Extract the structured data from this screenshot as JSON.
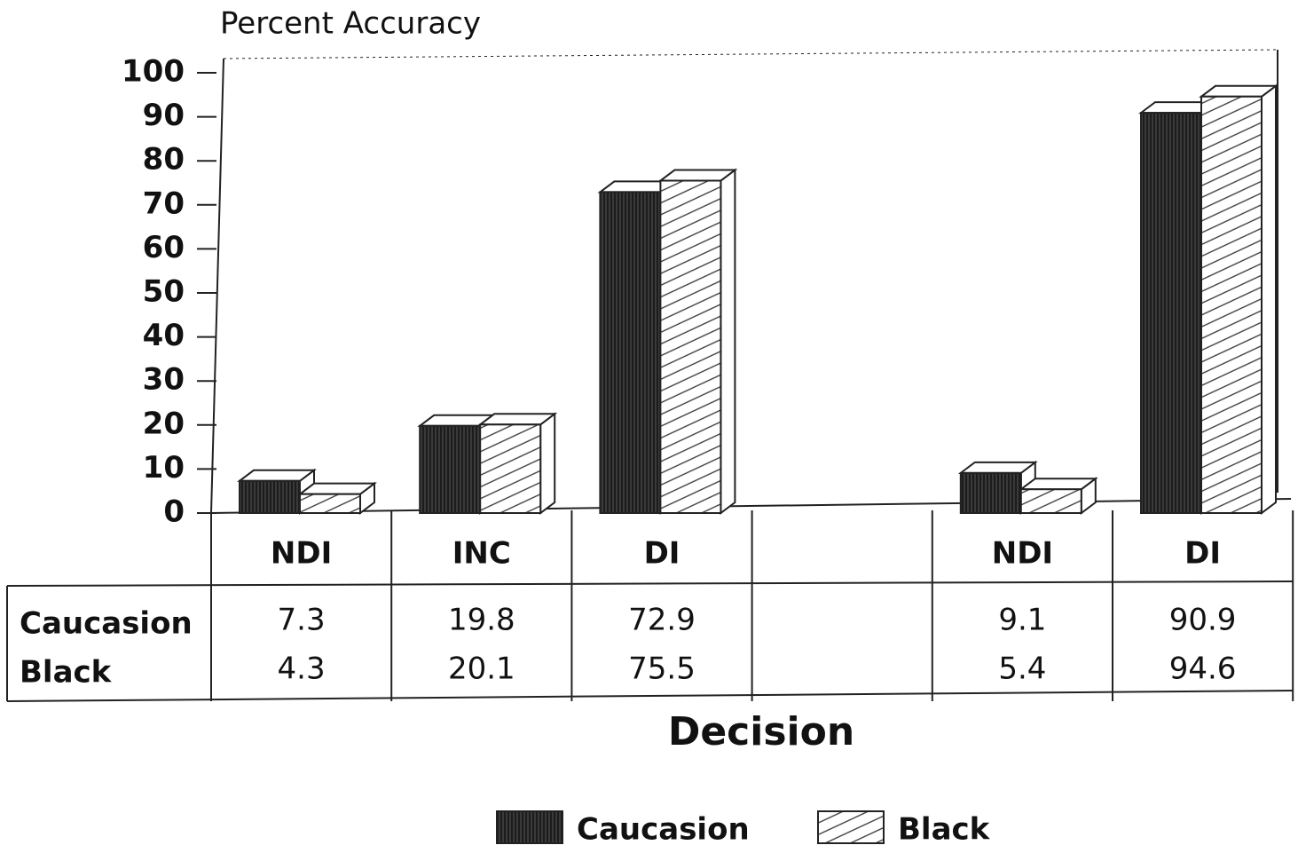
{
  "chart_data": {
    "type": "bar3d",
    "title": "Percent Accuracy",
    "x_label": "Decision",
    "categories": [
      "NDI",
      "INC",
      "DI",
      null,
      "NDI",
      "DI"
    ],
    "series": [
      {
        "name": "Caucasion",
        "color": "#3a3a3a",
        "values": [
          7.3,
          19.8,
          72.9,
          null,
          9.1,
          90.9
        ]
      },
      {
        "name": "Black",
        "color": "#ffffff",
        "values": [
          4.3,
          20.1,
          75.5,
          null,
          5.4,
          94.6
        ]
      }
    ],
    "ylim": [
      0,
      100
    ],
    "yticks": [
      0,
      10,
      20,
      30,
      40,
      50,
      60,
      70,
      80,
      90,
      100
    ],
    "grid": false,
    "legend": "bottom"
  }
}
